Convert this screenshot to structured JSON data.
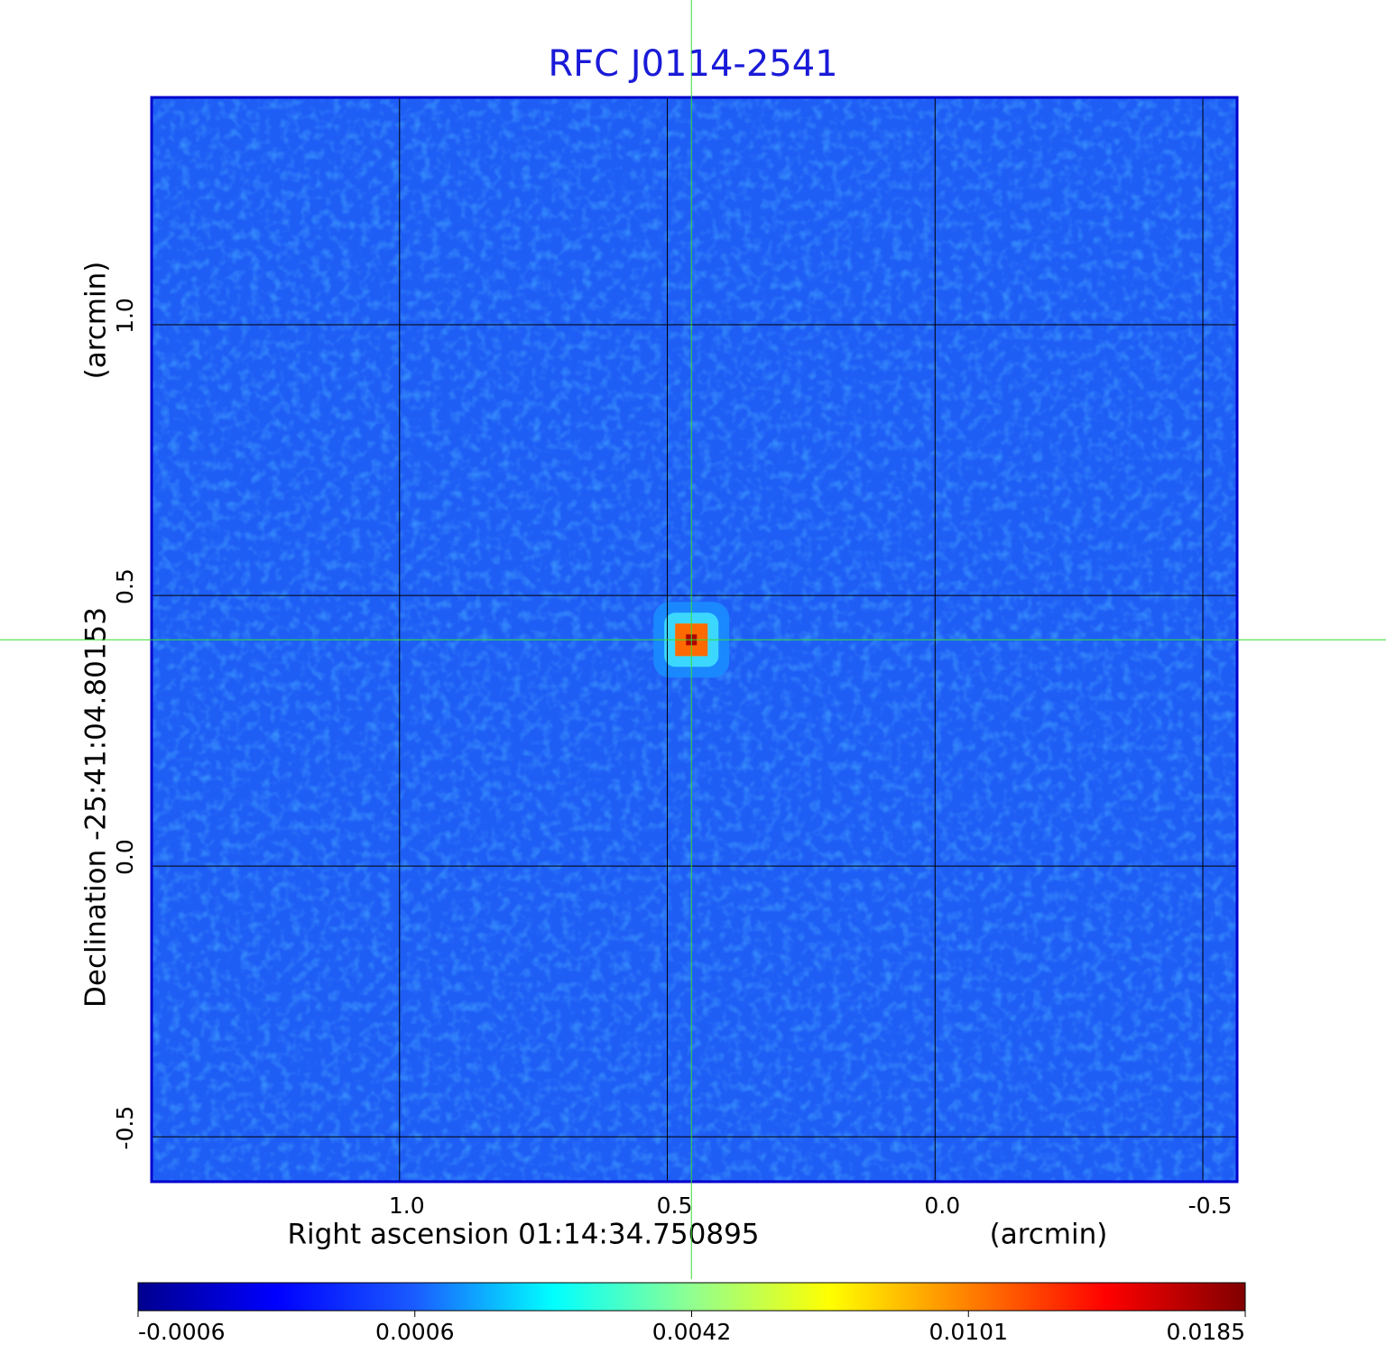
{
  "chart_data": {
    "type": "heatmap",
    "title": "RFC J0114-2541",
    "xlabel": "Right ascension  01:14:34.750895",
    "xunit": "(arcmin)",
    "ylabel": "Declination  -25:41:04.80153",
    "yunit": "(arcmin)",
    "xlim": [
      1.463,
      -0.564
    ],
    "ylim": [
      -0.583,
      1.42
    ],
    "xticks": [
      {
        "value": 1,
        "label": "1.0"
      },
      0.5,
      {
        "value": 0,
        "label": "0.0"
      },
      -0.5
    ],
    "yticks": [
      -0.5,
      {
        "value": 0,
        "label": "0.0"
      },
      0.5,
      {
        "value": 1,
        "label": "1.0"
      }
    ],
    "grid": true,
    "background": "#1f5ef5",
    "peak": {
      "x": 0.455,
      "y": 0.418
    },
    "crosshair": {
      "x": 0.455,
      "y": 0.418,
      "color": "#33dd33"
    },
    "colorbar": {
      "ticks": [
        -0.0006,
        0.0006,
        0.0042,
        0.0101,
        0.0185
      ],
      "colormap": [
        "#00008f",
        "#0000ff",
        "#1a5cff",
        "#00ffff",
        "#90ff90",
        "#ffff00",
        "#ff8000",
        "#ff0000",
        "#800000"
      ]
    }
  }
}
